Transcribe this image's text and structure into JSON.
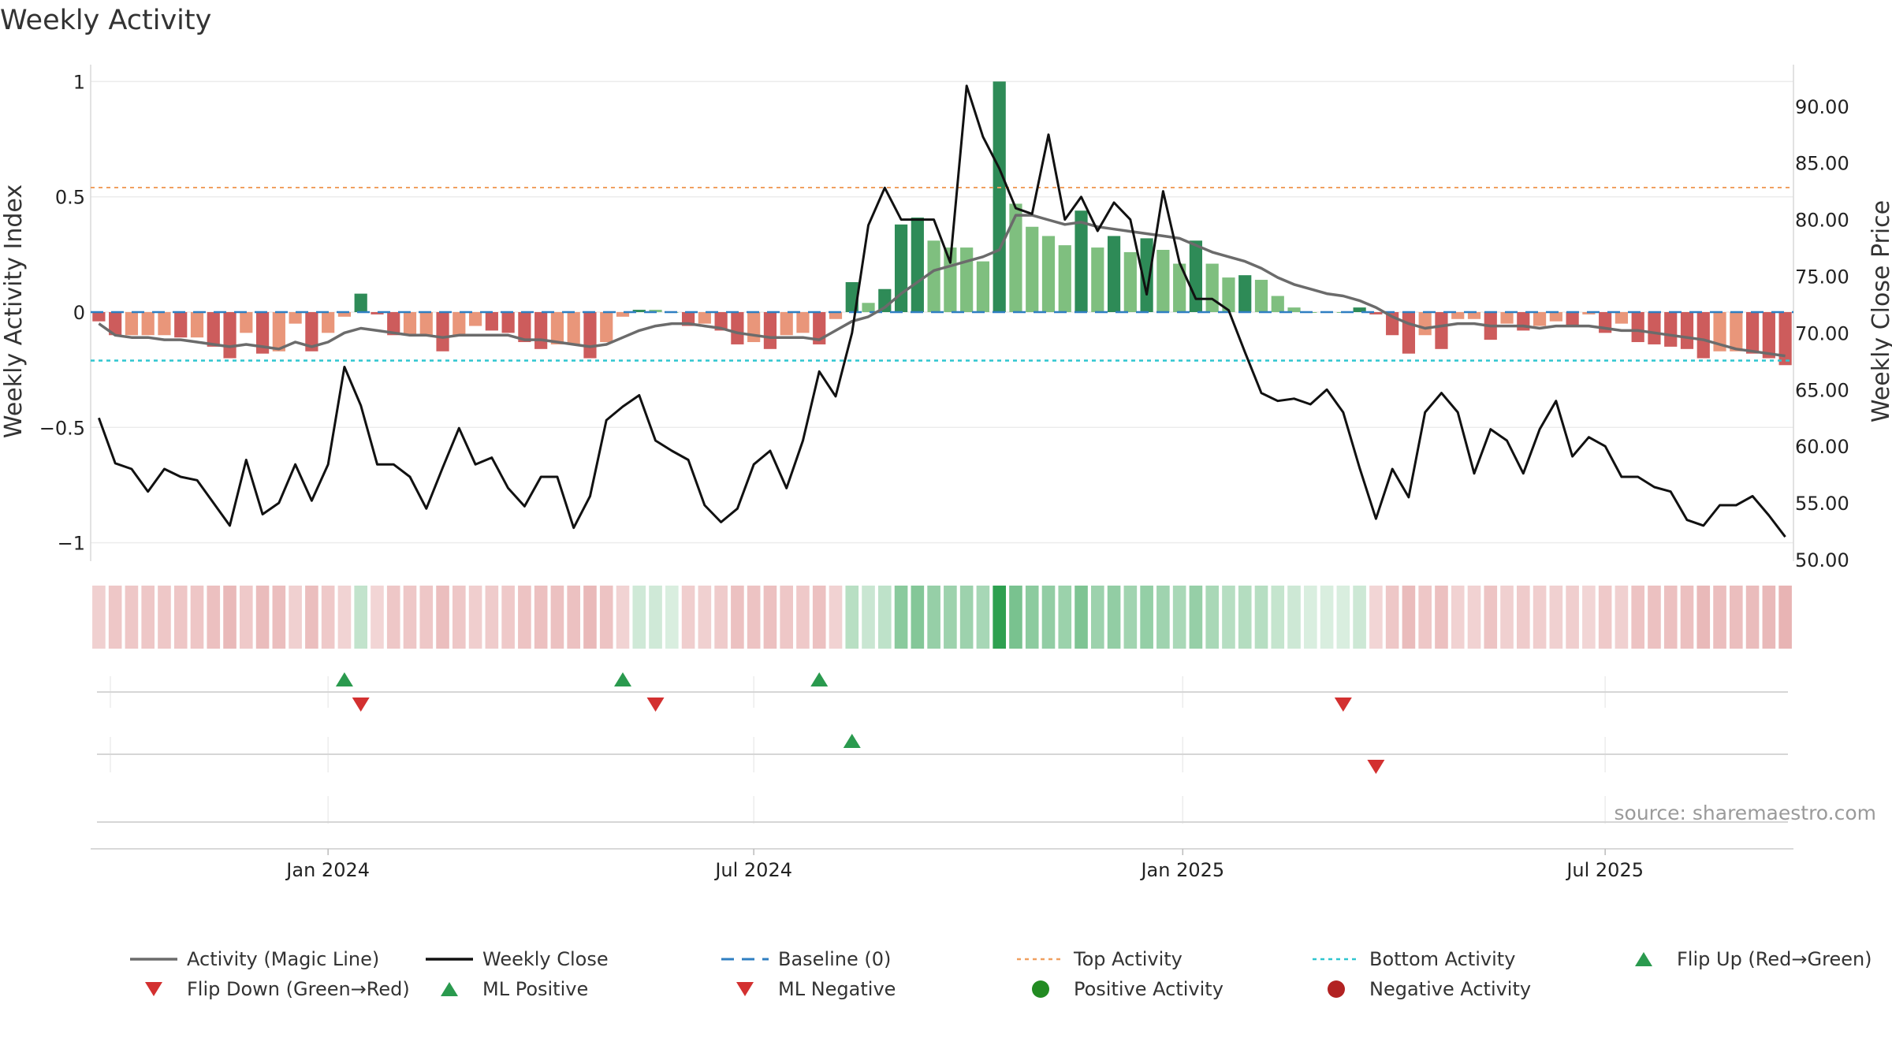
{
  "chart_data": {
    "type": "bar",
    "title": "Weekly Activity",
    "ylabel": "Weekly Activity Index",
    "y2label": "Weekly Close Price",
    "ylim": [
      -1.1,
      1.1
    ],
    "y2lim": [
      49.5,
      92.8
    ],
    "yticks": [
      1,
      0.5,
      0,
      -0.5,
      -1
    ],
    "ytick_labels": [
      "1",
      "0.5",
      "0",
      "−0.5",
      "−1"
    ],
    "y2ticks": [
      90,
      85,
      80,
      75,
      70,
      65,
      60,
      55,
      50
    ],
    "y2tick_labels": [
      "90.00",
      "85.00",
      "80.00",
      "75.00",
      "70.00",
      "65.00",
      "60.00",
      "55.00",
      "50.00"
    ],
    "xtick_labels": [
      {
        "label": "Jan 2024",
        "week": 14.5
      },
      {
        "label": "Jul 2024",
        "week": 40.5
      },
      {
        "label": "Jan 2025",
        "week": 66.7
      },
      {
        "label": "Jul 2025",
        "week": 92.5
      }
    ],
    "weeks": 104,
    "activity": [
      -0.04,
      -0.1,
      -0.1,
      -0.1,
      -0.1,
      -0.11,
      -0.11,
      -0.15,
      -0.2,
      -0.09,
      -0.18,
      -0.17,
      -0.05,
      -0.17,
      -0.09,
      -0.02,
      0.08,
      -0.01,
      -0.1,
      -0.1,
      -0.1,
      -0.17,
      -0.1,
      -0.06,
      -0.08,
      -0.09,
      -0.13,
      -0.16,
      -0.14,
      -0.14,
      -0.2,
      -0.13,
      -0.02,
      0.01,
      0.01,
      0.0,
      -0.06,
      -0.05,
      -0.08,
      -0.14,
      -0.13,
      -0.16,
      -0.1,
      -0.09,
      -0.14,
      -0.03,
      0.13,
      0.04,
      0.1,
      0.38,
      0.41,
      0.31,
      0.28,
      0.28,
      0.22,
      1.0,
      0.47,
      0.37,
      0.33,
      0.29,
      0.44,
      0.28,
      0.33,
      0.26,
      0.32,
      0.27,
      0.21,
      0.31,
      0.21,
      0.15,
      0.16,
      0.14,
      0.07,
      0.02,
      0.0,
      0.0,
      0.0,
      0.02,
      -0.01,
      -0.1,
      -0.18,
      -0.1,
      -0.16,
      -0.03,
      -0.03,
      -0.12,
      -0.05,
      -0.08,
      -0.06,
      -0.04,
      -0.06,
      -0.01,
      -0.09,
      -0.05,
      -0.13,
      -0.14,
      -0.15,
      -0.16,
      -0.2,
      -0.17,
      -0.17,
      -0.18,
      -0.2,
      -0.23
    ],
    "magic_line": [
      -0.05,
      -0.1,
      -0.11,
      -0.11,
      -0.12,
      -0.12,
      -0.13,
      -0.14,
      -0.15,
      -0.14,
      -0.15,
      -0.16,
      -0.13,
      -0.15,
      -0.13,
      -0.09,
      -0.07,
      -0.08,
      -0.09,
      -0.1,
      -0.1,
      -0.11,
      -0.1,
      -0.1,
      -0.1,
      -0.1,
      -0.12,
      -0.12,
      -0.13,
      -0.14,
      -0.15,
      -0.14,
      -0.11,
      -0.08,
      -0.06,
      -0.05,
      -0.05,
      -0.06,
      -0.07,
      -0.09,
      -0.1,
      -0.11,
      -0.11,
      -0.11,
      -0.12,
      -0.08,
      -0.04,
      -0.02,
      0.02,
      0.08,
      0.13,
      0.18,
      0.2,
      0.22,
      0.24,
      0.27,
      0.42,
      0.42,
      0.4,
      0.38,
      0.39,
      0.37,
      0.36,
      0.35,
      0.34,
      0.33,
      0.32,
      0.29,
      0.26,
      0.24,
      0.22,
      0.19,
      0.15,
      0.12,
      0.1,
      0.08,
      0.07,
      0.05,
      0.02,
      -0.02,
      -0.05,
      -0.07,
      -0.06,
      -0.05,
      -0.05,
      -0.06,
      -0.06,
      -0.06,
      -0.07,
      -0.06,
      -0.06,
      -0.06,
      -0.07,
      -0.08,
      -0.08,
      -0.09,
      -0.1,
      -0.11,
      -0.12,
      -0.14,
      -0.16,
      -0.17,
      -0.18,
      -0.19
    ],
    "weekly_close": [
      62.5,
      58.5,
      58.0,
      56.0,
      58.0,
      57.3,
      57.0,
      55.0,
      53.0,
      58.8,
      54.0,
      55.0,
      58.4,
      55.2,
      58.4,
      67.0,
      63.6,
      58.4,
      58.4,
      57.3,
      54.5,
      58.1,
      61.6,
      58.4,
      59.0,
      56.3,
      54.7,
      57.3,
      57.3,
      52.8,
      55.6,
      62.3,
      63.5,
      64.5,
      60.5,
      59.6,
      58.8,
      54.8,
      53.3,
      54.5,
      58.4,
      59.6,
      56.3,
      60.5,
      66.6,
      64.4,
      70.0,
      79.5,
      82.8,
      80.0,
      80.0,
      80.0,
      76.2,
      91.8,
      87.3,
      84.5,
      81.0,
      80.5,
      87.5,
      80.0,
      82.0,
      79.0,
      81.5,
      80.0,
      73.4,
      82.5,
      76.2,
      73.0,
      73.0,
      72.0,
      68.3,
      64.7,
      64.0,
      64.2,
      63.7,
      65.0,
      63.0,
      58.1,
      53.6,
      58.0,
      55.5,
      63.0,
      64.7,
      63.0,
      57.6,
      61.5,
      60.5,
      57.6,
      61.5,
      64.0,
      59.1,
      60.8,
      60.0,
      57.3,
      57.3,
      56.4,
      56.0,
      53.5,
      53.0,
      54.8,
      54.8,
      55.6,
      53.9,
      52.0
    ],
    "reference_lines": {
      "baseline": 0,
      "top_activity": 0.54,
      "bottom_activity": -0.21
    },
    "signals": {
      "flip_up_weeks": [
        15,
        32,
        44
      ],
      "flip_down_weeks": [
        16,
        34,
        76
      ],
      "ml_positive_weeks": [
        46
      ],
      "ml_negative_weeks": [
        78
      ]
    },
    "source": "source: sharemaestro.com",
    "legend": [
      {
        "label": "Activity (Magic Line)",
        "kind": "line",
        "color": "#6b6b6b"
      },
      {
        "label": "Weekly Close",
        "kind": "line",
        "color": "#111111"
      },
      {
        "label": "Baseline (0)",
        "kind": "dash",
        "color": "#2f7fc2"
      },
      {
        "label": "Top Activity",
        "kind": "dot",
        "color": "#f0a060"
      },
      {
        "label": "Bottom Activity",
        "kind": "dot",
        "color": "#2fc5cf"
      },
      {
        "label": "Flip Up (Red→Green)",
        "kind": "tri-up",
        "color": "#2a9a4e"
      },
      {
        "label": "Flip Down (Green→Red)",
        "kind": "tri-down",
        "color": "#d33030"
      },
      {
        "label": "ML Positive",
        "kind": "tri-up",
        "color": "#2a9a4e"
      },
      {
        "label": "ML Negative",
        "kind": "tri-down",
        "color": "#d33030"
      },
      {
        "label": "Positive Activity",
        "kind": "circle",
        "color": "#228b22"
      },
      {
        "label": "Negative Activity",
        "kind": "circle",
        "color": "#b22222"
      }
    ],
    "colors": {
      "pos_dark": "#2e8b57",
      "pos_light": "#7fbf7f",
      "neg_dark": "#cd5c5c",
      "neg_light": "#e9967a",
      "magic": "#6b6b6b",
      "close": "#111111",
      "baseline": "#2f7fc2",
      "top": "#f0a060",
      "bottom": "#2fc5cf",
      "flip_up": "#2a9a4e",
      "flip_down": "#d33030"
    }
  }
}
